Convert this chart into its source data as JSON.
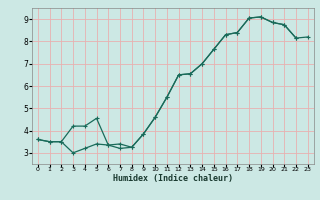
{
  "xlabel": "Humidex (Indice chaleur)",
  "bg_color": "#cce8e4",
  "line_color": "#1a6b5a",
  "grid_color": "#e8b0b0",
  "xlim": [
    -0.5,
    23.5
  ],
  "ylim": [
    2.5,
    9.5
  ],
  "xticks": [
    0,
    1,
    2,
    3,
    4,
    5,
    6,
    7,
    8,
    9,
    10,
    11,
    12,
    13,
    14,
    15,
    16,
    17,
    18,
    19,
    20,
    21,
    22,
    23
  ],
  "yticks": [
    3,
    4,
    5,
    6,
    7,
    8,
    9
  ],
  "upper_x": [
    0,
    1,
    2,
    3,
    4,
    5,
    6,
    7,
    8,
    9,
    10,
    11,
    12,
    13,
    14,
    15,
    16,
    17,
    18,
    19,
    20,
    21,
    22
  ],
  "upper_y": [
    3.6,
    3.5,
    3.5,
    4.2,
    4.2,
    4.55,
    3.35,
    3.4,
    3.25,
    3.85,
    4.6,
    5.5,
    6.5,
    6.55,
    7.0,
    7.65,
    8.3,
    8.4,
    9.05,
    9.1,
    8.85,
    8.75,
    8.15
  ],
  "lower_x": [
    0,
    1,
    2,
    3,
    4,
    5,
    6,
    7,
    8,
    9,
    10,
    11,
    12,
    13,
    14,
    15,
    16,
    17,
    18,
    19,
    20,
    21,
    22,
    23
  ],
  "lower_y": [
    3.6,
    3.5,
    3.5,
    3.0,
    3.2,
    3.4,
    3.35,
    3.2,
    3.25,
    3.85,
    4.6,
    5.5,
    6.5,
    6.55,
    7.0,
    7.65,
    8.3,
    8.4,
    9.05,
    9.1,
    8.85,
    8.75,
    8.15,
    8.2
  ]
}
